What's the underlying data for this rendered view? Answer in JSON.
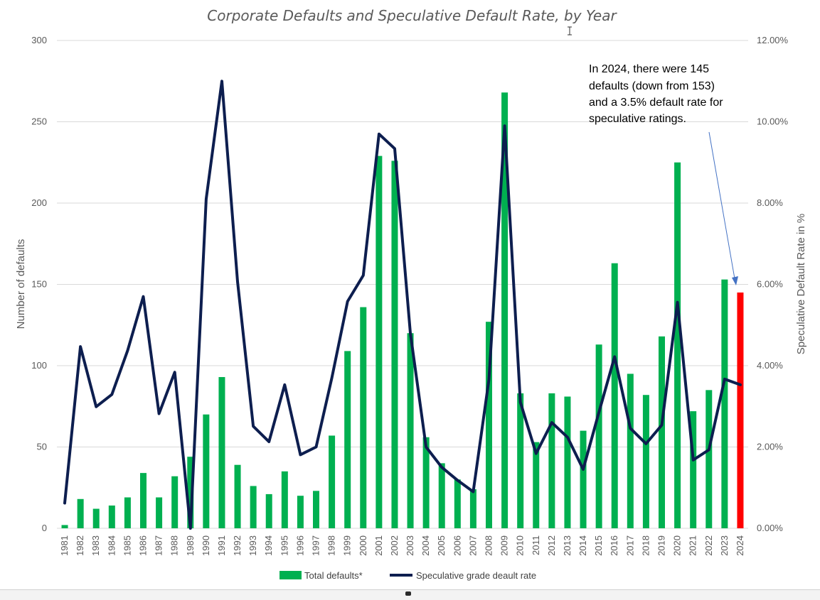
{
  "chart_data": {
    "type": "bar+line",
    "title": "Corporate Defaults and Speculative Default Rate, by Year",
    "ylabel_left": "Number of defaults",
    "ylabel_right": "Speculative Default Rate in %",
    "ylim_left": [
      0,
      300
    ],
    "ylim_right": [
      0,
      12
    ],
    "left_ticks": [
      "0",
      "50",
      "100",
      "150",
      "200",
      "250",
      "300"
    ],
    "right_ticks": [
      "0.00%",
      "2.00%",
      "4.00%",
      "6.00%",
      "8.00%",
      "10.00%",
      "12.00%"
    ],
    "grid": true,
    "legend_position": "bottom",
    "categories": [
      "1981",
      "1982",
      "1983",
      "1984",
      "1985",
      "1986",
      "1987",
      "1988",
      "1989",
      "1990",
      "1991",
      "1992",
      "1993",
      "1994",
      "1995",
      "1996",
      "1997",
      "1998",
      "1999",
      "2000",
      "2001",
      "2002",
      "2003",
      "2004",
      "2005",
      "2006",
      "2007",
      "2008",
      "2009",
      "2010",
      "2011",
      "2012",
      "2013",
      "2014",
      "2015",
      "2016",
      "2017",
      "2018",
      "2019",
      "2020",
      "2021",
      "2022",
      "2023",
      "2024"
    ],
    "series": [
      {
        "name": "Total defaults*",
        "type": "bar",
        "axis": "left",
        "color": "#00b050",
        "highlight_color": "#ff0000",
        "highlight_index": 43,
        "values": [
          2,
          18,
          12,
          14,
          19,
          34,
          19,
          32,
          44,
          70,
          93,
          39,
          26,
          21,
          35,
          20,
          23,
          57,
          109,
          136,
          229,
          226,
          120,
          56,
          40,
          30,
          24,
          127,
          268,
          83,
          53,
          83,
          81,
          60,
          113,
          163,
          95,
          82,
          118,
          225,
          72,
          85,
          153,
          145
        ]
      },
      {
        "name": "Speculative grade deault rate",
        "type": "line",
        "axis": "right",
        "color": "#0d1e4f",
        "values": [
          0.62,
          4.47,
          2.99,
          3.29,
          4.37,
          5.7,
          2.82,
          3.84,
          0.0,
          8.1,
          11.0,
          6.07,
          2.51,
          2.13,
          3.53,
          1.81,
          2.0,
          3.7,
          5.58,
          6.22,
          9.7,
          9.34,
          4.8,
          2.0,
          1.5,
          1.18,
          0.9,
          3.66,
          9.9,
          3.1,
          1.84,
          2.6,
          2.24,
          1.45,
          2.85,
          4.22,
          2.46,
          2.08,
          2.54,
          5.56,
          1.68,
          1.93,
          3.67,
          3.53
        ]
      }
    ],
    "annotation": {
      "lines": [
        "In 2024, there were 145",
        "defaults (down from 153)",
        "and a 3.5% default rate for",
        "speculative ratings."
      ]
    }
  }
}
